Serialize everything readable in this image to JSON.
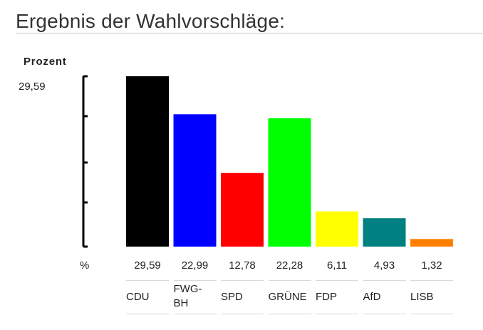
{
  "page": {
    "title": "Ergebnis der Wahlvorschläge:"
  },
  "chart_data": {
    "type": "bar",
    "ylabel": "Prozent",
    "ymax_label": "29,59",
    "value_row_label": "%",
    "ylim": [
      0,
      29.59
    ],
    "grid": false,
    "categories": [
      "CDU",
      "FWG-BH",
      "SPD",
      "GRÜNE",
      "FDP",
      "AfD",
      "LISB"
    ],
    "values": [
      29.59,
      22.99,
      12.78,
      22.28,
      6.11,
      4.93,
      1.32
    ],
    "value_labels": [
      "29,59",
      "22,99",
      "12,78",
      "22,28",
      "6,11",
      "4,93",
      "1,32"
    ],
    "colors": [
      "#000000",
      "#0000ff",
      "#ff0000",
      "#00ff00",
      "#ffff00",
      "#008080",
      "#ff8000"
    ]
  }
}
